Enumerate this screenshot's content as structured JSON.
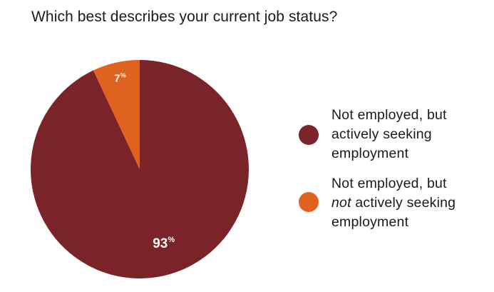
{
  "chart_data": {
    "type": "pie",
    "title": "Which best describes your current job status?",
    "categories": [
      "Not employed, but actively seeking employment",
      "Not employed, but not actively seeking employment"
    ],
    "values": [
      93,
      7
    ],
    "value_labels": [
      "93",
      "7"
    ],
    "value_suffix": "%",
    "colors": [
      "#7a2329",
      "#e0621f"
    ],
    "legend_position": "right"
  },
  "legend": {
    "items": [
      {
        "line1": "Not employed, but",
        "line2": "actively seeking",
        "line3": "employment",
        "color": "#7a2329"
      },
      {
        "line1": "Not employed, but",
        "line2_emphasis": "not",
        "line2_rest": " actively seeking",
        "line3": "employment",
        "color": "#e0621f"
      }
    ]
  }
}
